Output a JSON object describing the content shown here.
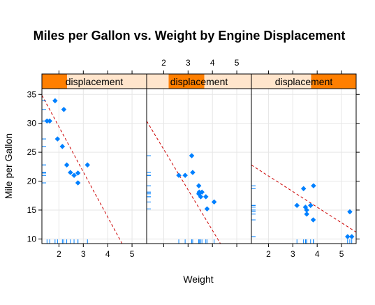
{
  "chart_data": {
    "type": "scatter",
    "title": "Miles per Gallon vs. Weight by Engine Displacement",
    "xlabel": "Weight",
    "ylabel": "Mile per Gallon",
    "xlim": [
      1.3,
      5.6
    ],
    "ylim": [
      9.2,
      36.0
    ],
    "x_ticks": [
      2,
      3,
      4,
      5
    ],
    "y_ticks": [
      10,
      15,
      20,
      25,
      30,
      35
    ],
    "grid": true,
    "strip_label": "displacement",
    "panels": [
      {
        "strip_shade": [
          0.0,
          0.24
        ],
        "points": [
          [
            1.51,
            30.4
          ],
          [
            1.62,
            30.4
          ],
          [
            1.84,
            33.9
          ],
          [
            1.94,
            27.3
          ],
          [
            2.14,
            26.0
          ],
          [
            2.2,
            32.4
          ],
          [
            2.32,
            22.8
          ],
          [
            2.47,
            21.5
          ],
          [
            2.62,
            21.0
          ],
          [
            2.78,
            19.7
          ],
          [
            2.78,
            21.4
          ],
          [
            3.17,
            22.8
          ]
        ],
        "fit": {
          "intercept": 45.0,
          "slope": -7.8
        }
      },
      {
        "strip_shade": [
          0.21,
          0.55
        ],
        "points": [
          [
            2.62,
            21.0
          ],
          [
            2.88,
            21.0
          ],
          [
            3.15,
            24.4
          ],
          [
            3.19,
            21.5
          ],
          [
            3.44,
            19.2
          ],
          [
            3.44,
            17.8
          ],
          [
            3.46,
            18.1
          ],
          [
            3.52,
            17.3
          ],
          [
            3.57,
            18.1
          ],
          [
            3.73,
            17.3
          ],
          [
            3.78,
            15.2
          ],
          [
            4.07,
            16.4
          ]
        ],
        "fit": {
          "intercept": 39.5,
          "slope": -7.0
        }
      },
      {
        "strip_shade": [
          0.57,
          1.0
        ],
        "points": [
          [
            3.17,
            15.8
          ],
          [
            3.44,
            18.7
          ],
          [
            3.52,
            15.5
          ],
          [
            3.57,
            14.3
          ],
          [
            3.57,
            15.0
          ],
          [
            3.73,
            15.8
          ],
          [
            3.84,
            13.3
          ],
          [
            3.85,
            19.2
          ],
          [
            5.25,
            10.4
          ],
          [
            5.34,
            14.7
          ],
          [
            5.42,
            10.4
          ]
        ],
        "fit": {
          "intercept": 26.3,
          "slope": -2.7
        }
      }
    ]
  }
}
